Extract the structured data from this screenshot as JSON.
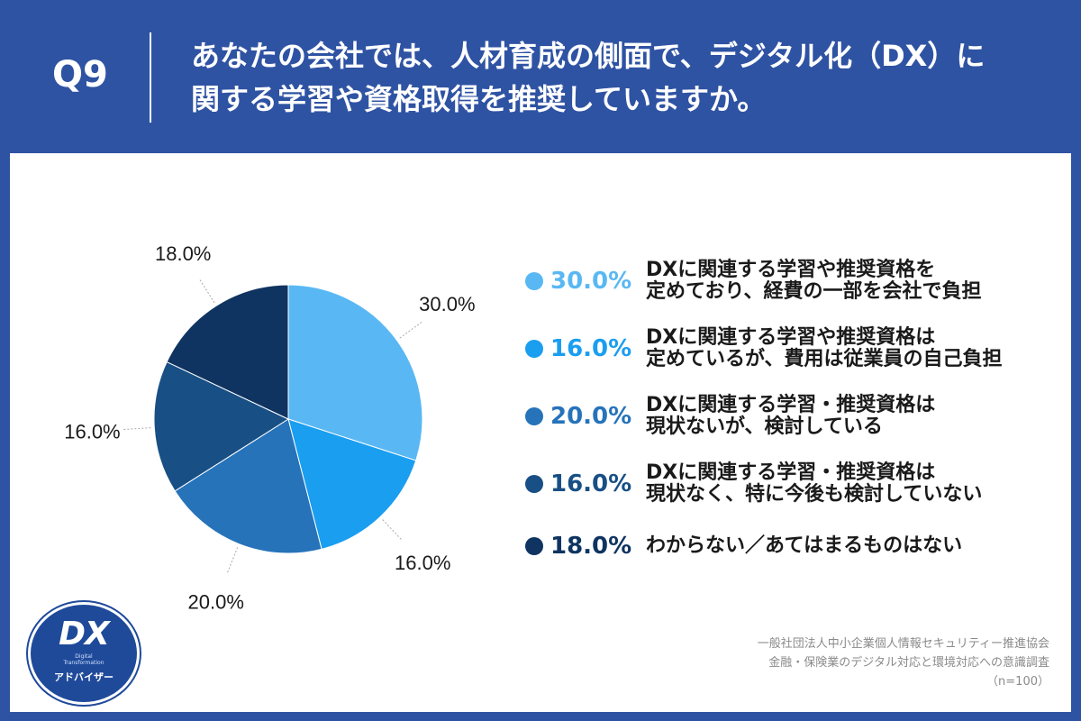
{
  "header": {
    "q_label": "Q9",
    "question_line1": "あなたの会社では、人材育成の側面で、デジタル化（DX）に",
    "question_line2": "関する学習や資格取得を推奨していますか。"
  },
  "chart_data": {
    "type": "pie",
    "start_angle_deg": 0,
    "direction": "clockwise",
    "slices": [
      {
        "value": 30.0,
        "label": "30.0%",
        "color": "#59b8f4",
        "text_line1": "DXに関連する学習や推奨資格を",
        "text_line2": "定めており、経費の一部を会社で負担"
      },
      {
        "value": 16.0,
        "label": "16.0%",
        "color": "#1a9ef0",
        "text_line1": "DXに関連する学習や推奨資格は",
        "text_line2": "定めているが、費用は従業員の自己負担"
      },
      {
        "value": 20.0,
        "label": "20.0%",
        "color": "#2673ba",
        "text_line1": "DXに関連する学習・推奨資格は",
        "text_line2": "現状ないが、検討している"
      },
      {
        "value": 16.0,
        "label": "16.0%",
        "color": "#184f85",
        "text_line1": "DXに関連する学習・推奨資格は",
        "text_line2": "現状なく、特に今後も検討していない"
      },
      {
        "value": 18.0,
        "label": "18.0%",
        "color": "#0f3461",
        "text_line1": "わからない／あてはまるものはない",
        "text_line2": ""
      }
    ]
  },
  "source": {
    "line1": "一般社団法人中小企業個人情報セキュリティー推進協会",
    "line2": "金融・保険業のデジタル対応と環境対応への意識調査",
    "line3": "（n=100）"
  },
  "logo": {
    "main": "DX",
    "sub1": "Digital",
    "sub2": "Transformation",
    "name": "アドバイザー"
  }
}
